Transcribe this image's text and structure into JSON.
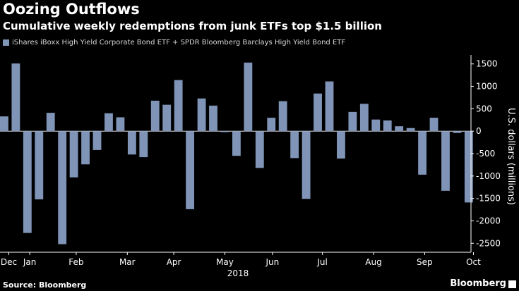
{
  "title": "Oozing Outflows",
  "subtitle": "Cumulative weekly redemptions from junk ETFs top $1.5 billion",
  "source": "Source: Bloomberg",
  "brand": "Bloomberg",
  "colors": {
    "bar": "#7f94b7",
    "axis": "#ffffff",
    "background": "#000000"
  },
  "chart_data": {
    "type": "bar",
    "legend": [
      "iShares iBoxx High Yield Corporate Bond ETF + SPDR Bloomberg Barclays High Yield Bond ETF"
    ],
    "ylabel": "U.S. dollars (millions)",
    "xlabel": "2018",
    "ylim": [
      -2700,
      1700
    ],
    "yticks": [
      -2500,
      -2000,
      -1500,
      -1000,
      -500,
      0,
      500,
      1000,
      1500
    ],
    "month_labels": [
      "Dec",
      "Jan",
      "Feb",
      "Mar",
      "Apr",
      "May",
      "Jun",
      "Jul",
      "Aug",
      "Sep",
      "Oct"
    ],
    "month_label_week_index": [
      0.4,
      2.2,
      6.2,
      10.6,
      14.6,
      19.0,
      23.1,
      27.4,
      31.8,
      36.2,
      40.4
    ],
    "series": [
      {
        "name": "iShares iBoxx High Yield Corporate Bond ETF + SPDR Bloomberg Barclays High Yield Bond ETF",
        "values": [
          330,
          1510,
          -2270,
          -1520,
          410,
          -2520,
          -1030,
          -740,
          -420,
          400,
          310,
          -520,
          -580,
          680,
          590,
          1140,
          -1740,
          730,
          570,
          -20,
          -550,
          1530,
          -820,
          300,
          670,
          -600,
          -1510,
          840,
          1110,
          -610,
          430,
          610,
          260,
          240,
          110,
          70,
          -970,
          300,
          -1330,
          -40,
          -1590
        ]
      }
    ]
  }
}
